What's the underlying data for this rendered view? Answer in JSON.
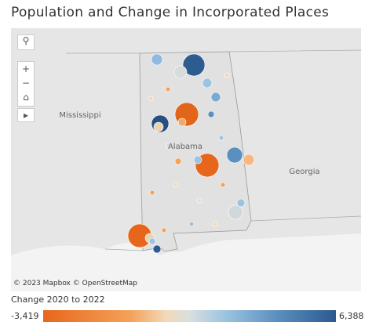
{
  "title": "Population and Change in Incorporated Places",
  "map": {
    "labels": [
      "Mississippi",
      "Alabama",
      "Georgia"
    ],
    "attribution": "© 2023 Mapbox © OpenStreetMap"
  },
  "legend": {
    "title": "Change 2020 to 2022",
    "min": {
      "value": -3419,
      "label": "-3,419"
    },
    "max": {
      "value": 6388,
      "label": "6,388"
    }
  }
}
